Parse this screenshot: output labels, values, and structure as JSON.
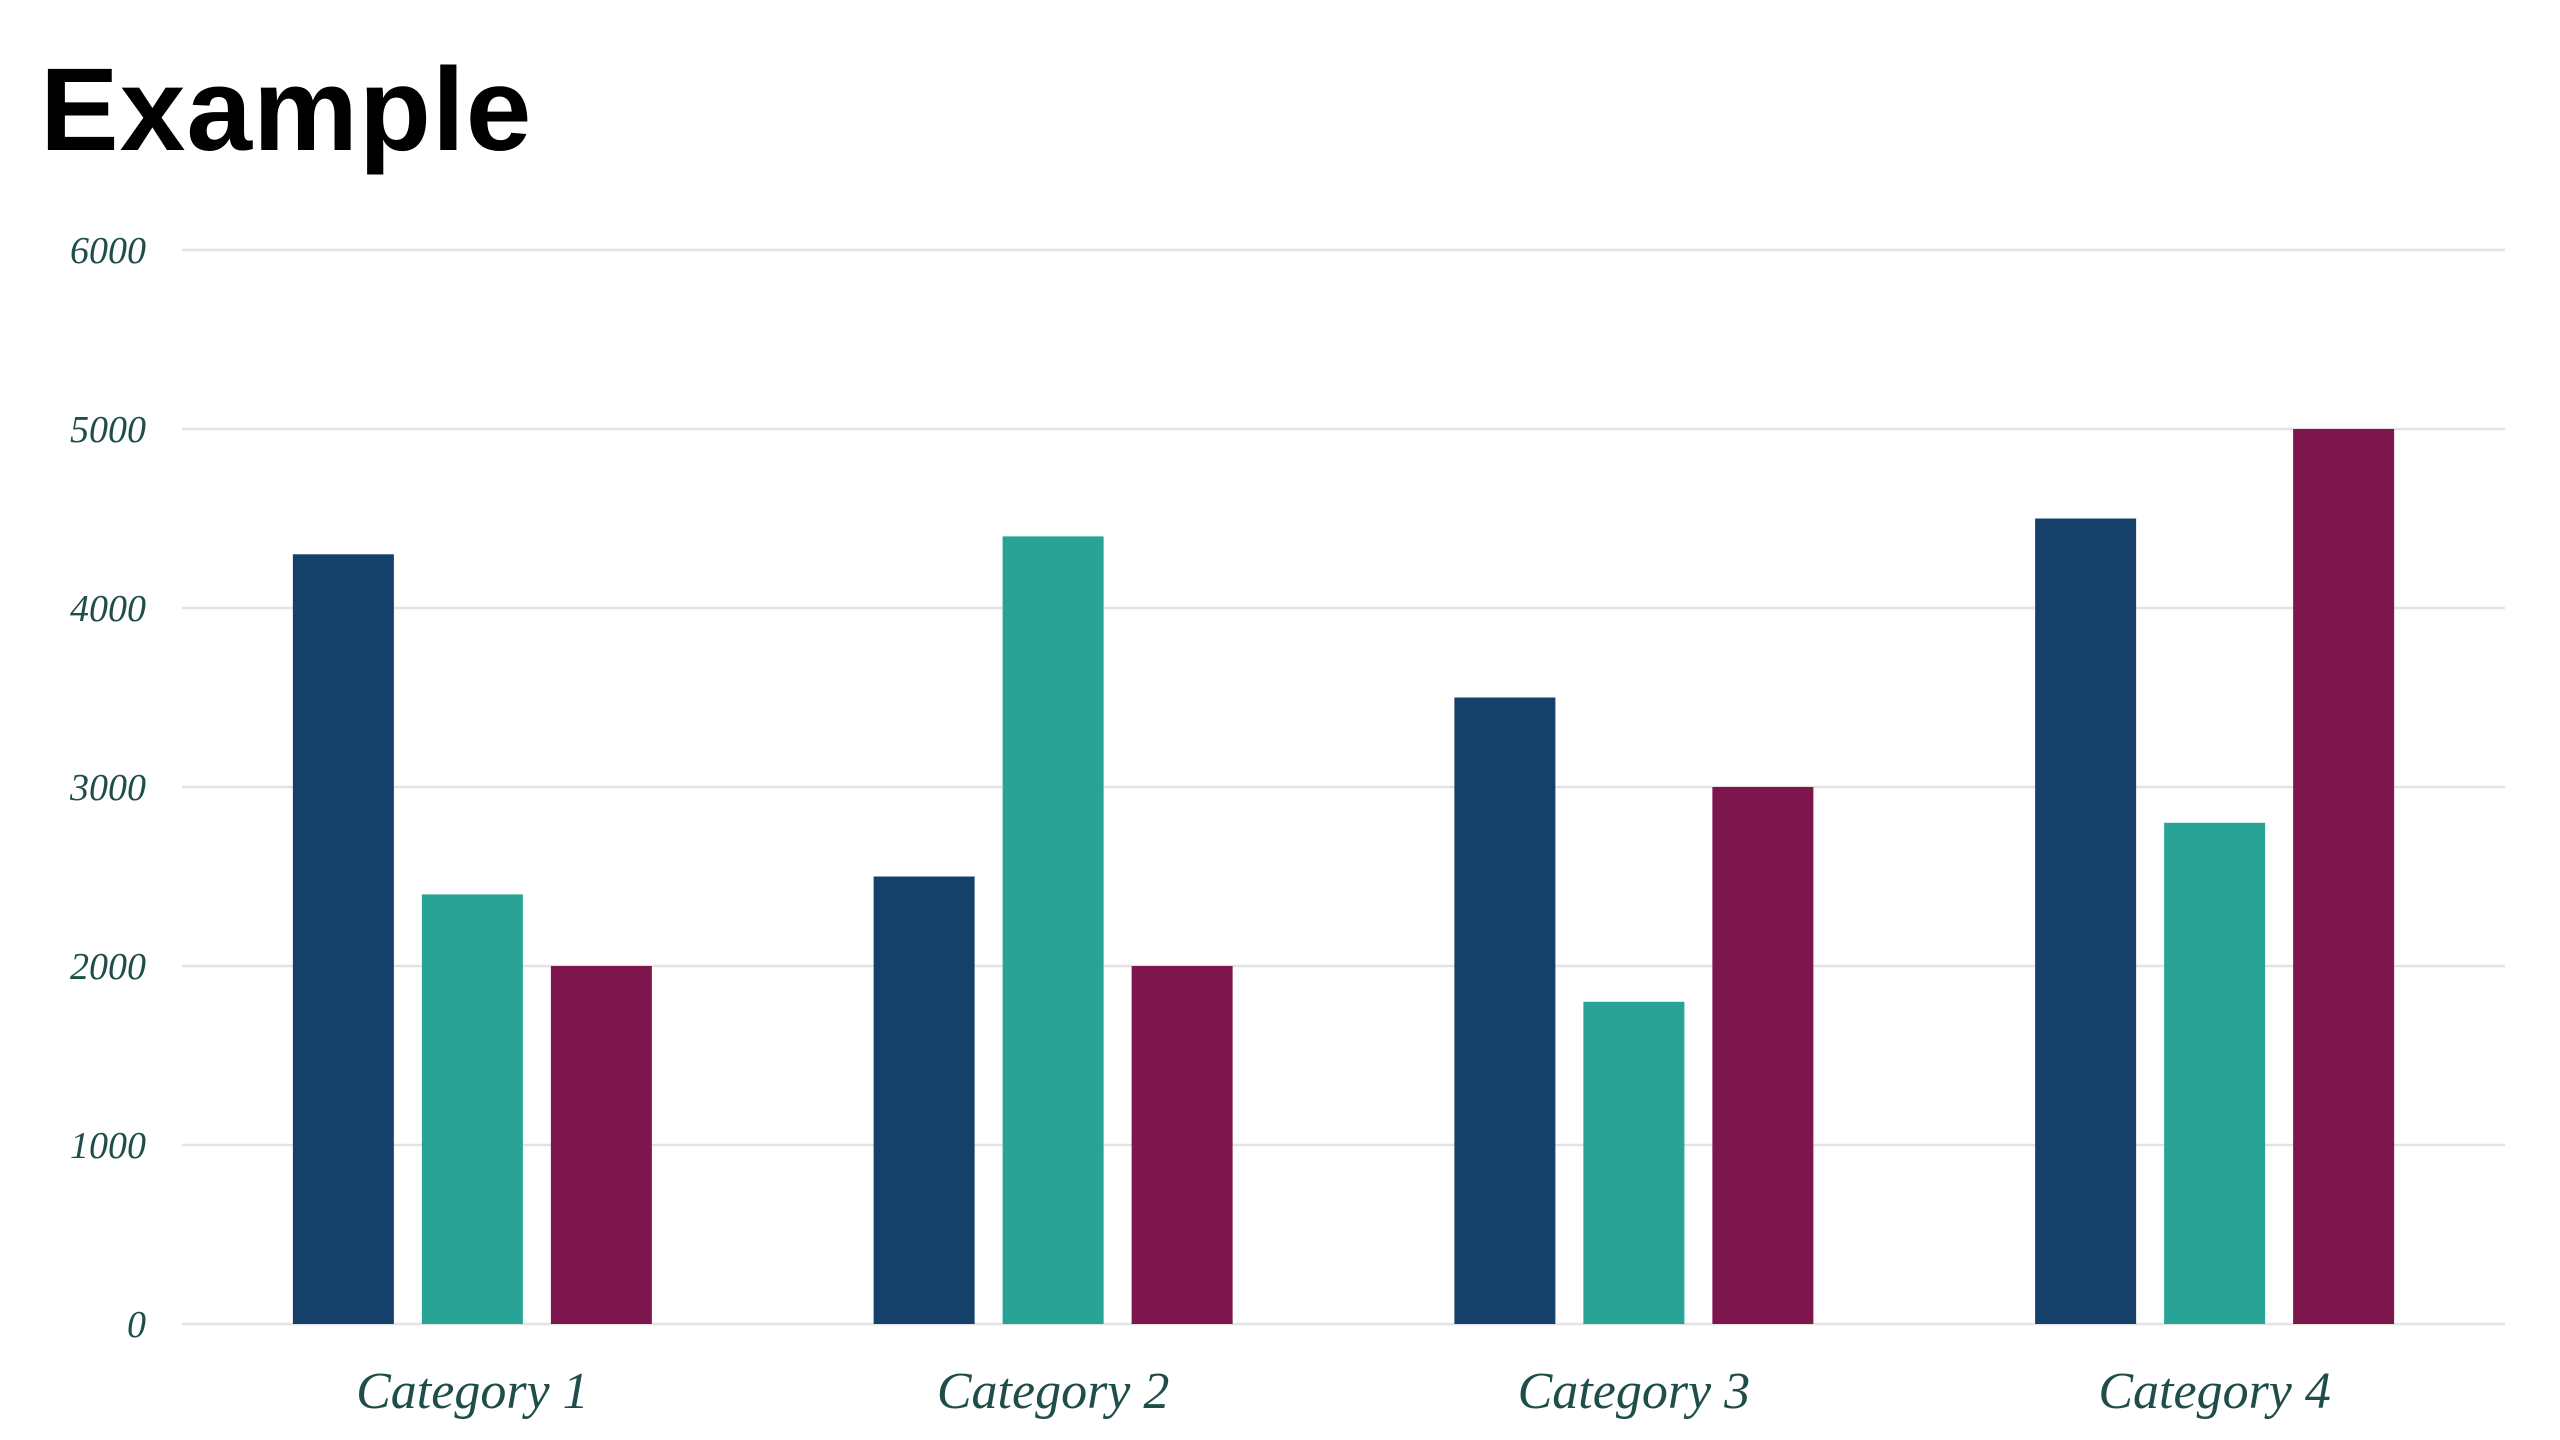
{
  "title": "Example",
  "colors": {
    "axis_text": "#1f4e4a",
    "gridline": "#e3e3e3"
  },
  "chart_data": {
    "type": "bar",
    "title": "Example",
    "xlabel": "",
    "ylabel": "",
    "categories": [
      "Category 1",
      "Category 2",
      "Category 3",
      "Category 4"
    ],
    "series": [
      {
        "color": "#15406a",
        "values": [
          4300,
          2500,
          3500,
          4500
        ]
      },
      {
        "color": "#29a396",
        "values": [
          2400,
          4400,
          1800,
          2800
        ]
      },
      {
        "color": "#7d164c",
        "values": [
          2000,
          2000,
          3000,
          5000
        ]
      }
    ],
    "ylim": [
      0,
      6000
    ],
    "yticks": [
      0,
      1000,
      2000,
      3000,
      4000,
      5000,
      6000
    ],
    "grid": true,
    "legend": "none"
  }
}
